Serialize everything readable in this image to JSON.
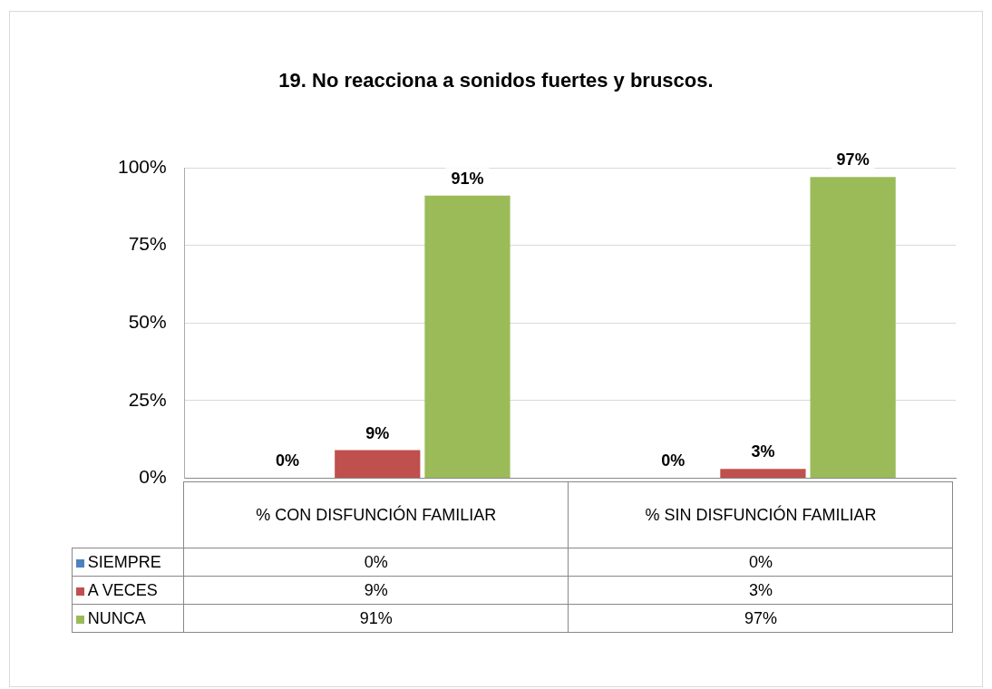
{
  "chart_data": {
    "type": "bar",
    "title": "19. No reacciona a sonidos fuertes y bruscos.",
    "categories": [
      "% CON DISFUNCIÓN FAMILIAR",
      "% SIN DISFUNCIÓN FAMILIAR"
    ],
    "series": [
      {
        "name": "SIEMPRE",
        "color": "#4f81bd",
        "values": [
          0,
          0
        ],
        "value_labels": [
          "0%",
          "0%"
        ]
      },
      {
        "name": "A VECES",
        "color": "#c0504d",
        "values": [
          9,
          3
        ],
        "value_labels": [
          "9%",
          "3%"
        ]
      },
      {
        "name": "NUNCA",
        "color": "#9bbb59",
        "values": [
          91,
          97
        ],
        "value_labels": [
          "91%",
          "97%"
        ]
      }
    ],
    "ylim": [
      0,
      100
    ],
    "yticks": [
      {
        "value": 0,
        "label": "0%"
      },
      {
        "value": 25,
        "label": "25%"
      },
      {
        "value": 50,
        "label": "50%"
      },
      {
        "value": 75,
        "label": "75%"
      },
      {
        "value": 100,
        "label": "100%"
      }
    ],
    "grid": "y",
    "legend": "bottom"
  }
}
